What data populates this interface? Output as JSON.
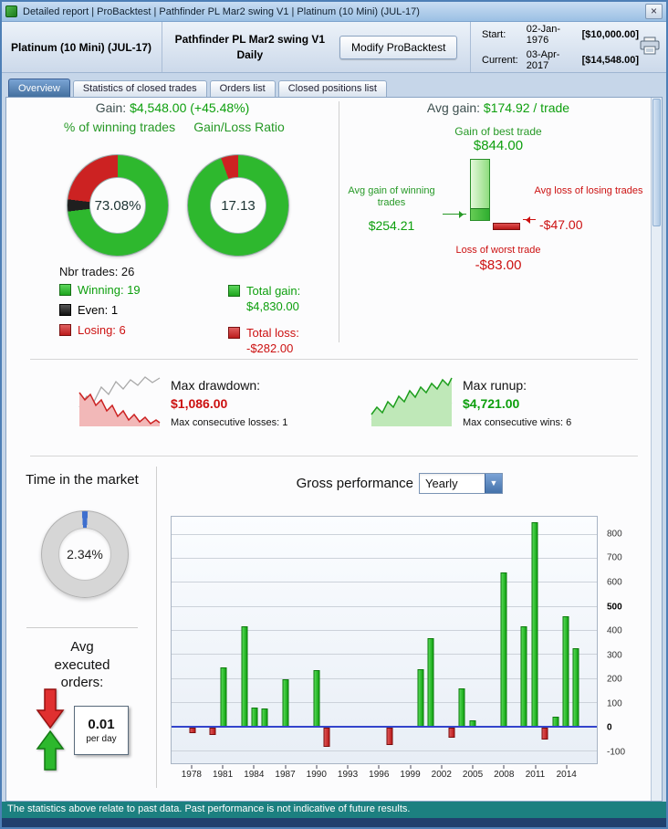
{
  "window": {
    "title": "Detailed report | ProBacktest | Pathfinder PL Mar2 swing V1 | Platinum (10 Mini) (JUL-17)",
    "close": "×"
  },
  "header": {
    "instrument": "Platinum (10 Mini) (JUL-17)",
    "system_name": "Pathfinder PL Mar2 swing V1",
    "system_timeframe": "Daily",
    "modify_button": "Modify ProBacktest",
    "start_label": "Start:",
    "start_date": "02-Jan-1976",
    "start_amount": "[$10,000.00]",
    "current_label": "Current:",
    "current_date": "03-Apr-2017",
    "current_amount": "[$14,548.00]"
  },
  "tabs": [
    {
      "label": "Overview"
    },
    {
      "label": "Statistics of closed trades"
    },
    {
      "label": "Orders list"
    },
    {
      "label": "Closed positions list"
    }
  ],
  "overview": {
    "gain_label": "Gain:",
    "gain_value": "$4,548.00 (+45.48%)",
    "winning_title": "% of winning trades",
    "winning_pct": "73.08%",
    "ratio_title": "Gain/Loss Ratio",
    "ratio_value": "17.13",
    "nbr_trades": "Nbr trades: 26",
    "legend_winning": "Winning: 19",
    "legend_even": "Even: 1",
    "legend_losing": "Losing: 6",
    "total_gain_label": "Total gain:",
    "total_gain_value": "$4,830.00",
    "total_loss_label": "Total loss:",
    "total_loss_value": "-$282.00",
    "avg_gain_label": "Avg gain:",
    "avg_gain_value": "$174.92 / trade",
    "best_trade_label": "Gain of best trade",
    "best_trade_value": "$844.00",
    "avg_win_label": "Avg gain of winning trades",
    "avg_win_value": "$254.21",
    "avg_loss_label": "Avg loss of losing trades",
    "avg_loss_value": "-$47.00",
    "worst_trade_label": "Loss of worst trade",
    "worst_trade_value": "-$83.00",
    "drawdown_label": "Max drawdown:",
    "drawdown_value": "$1,086.00",
    "drawdown_sub": "Max consecutive losses: 1",
    "runup_label": "Max runup:",
    "runup_value": "$4,721.00",
    "runup_sub": "Max consecutive wins: 6",
    "time_in_market_title": "Time in the market",
    "time_in_market_value": "2.34%",
    "avg_orders_title": "Avg executed orders:",
    "avg_orders_value": "0.01",
    "avg_orders_unit": "per day",
    "gross_perf_title": "Gross performance",
    "gross_perf_period": "Yearly"
  },
  "donuts": {
    "winning": {
      "from": 0,
      "segments": [
        {
          "color": "#2eb82e",
          "deg": 263
        },
        {
          "color": "#1f1f1f",
          "deg": 14
        },
        {
          "color": "#cc2222",
          "deg": 83
        }
      ]
    },
    "ratio": {
      "from": 0,
      "segments": [
        {
          "color": "#2eb82e",
          "deg": 340
        },
        {
          "color": "#cc2222",
          "deg": 20
        }
      ]
    },
    "gauge": {
      "from": -4,
      "segments": [
        {
          "color": "#3e6fce",
          "deg": 8
        },
        {
          "color": "#d6d6d6",
          "deg": 352
        }
      ]
    }
  },
  "chart_data": {
    "type": "bar",
    "title": "Gross performance",
    "period": "Yearly",
    "ylabel": "",
    "ylim": [
      -150,
      875
    ],
    "yticks": [
      -100,
      0,
      100,
      200,
      300,
      400,
      500,
      600,
      700,
      800
    ],
    "bold_yticks": [
      0,
      500
    ],
    "x_range": [
      1976,
      2017
    ],
    "xticks": [
      1978,
      1981,
      1984,
      1987,
      1990,
      1993,
      1996,
      1999,
      2002,
      2005,
      2008,
      2011,
      2014
    ],
    "grid": true,
    "positive_color": "#1db31d",
    "negative_color": "#cc2222",
    "zero_line_color": "#3344cc",
    "bars": [
      {
        "year": 1978,
        "value": -25
      },
      {
        "year": 1980,
        "value": -32
      },
      {
        "year": 1981,
        "value": 248
      },
      {
        "year": 1983,
        "value": 420
      },
      {
        "year": 1984,
        "value": 80
      },
      {
        "year": 1985,
        "value": 78
      },
      {
        "year": 1987,
        "value": 200
      },
      {
        "year": 1990,
        "value": 238
      },
      {
        "year": 1991,
        "value": -80
      },
      {
        "year": 1997,
        "value": -75
      },
      {
        "year": 2000,
        "value": 242
      },
      {
        "year": 2001,
        "value": 372
      },
      {
        "year": 2003,
        "value": -42
      },
      {
        "year": 2004,
        "value": 160
      },
      {
        "year": 2005,
        "value": 30
      },
      {
        "year": 2008,
        "value": 645
      },
      {
        "year": 2010,
        "value": 420
      },
      {
        "year": 2011,
        "value": 852
      },
      {
        "year": 2012,
        "value": -52
      },
      {
        "year": 2013,
        "value": 42
      },
      {
        "year": 2014,
        "value": 462
      },
      {
        "year": 2015,
        "value": 330
      }
    ]
  },
  "footer": {
    "disclaimer": "The statistics above relate to past data. Past performance is not indicative of future results."
  },
  "colors": {
    "green_text": "#0d9f0d",
    "red_text": "#cc1111",
    "tab_active": "#44709f",
    "status_bar": "#1c8080",
    "window_frame": "#4d7fb6"
  }
}
